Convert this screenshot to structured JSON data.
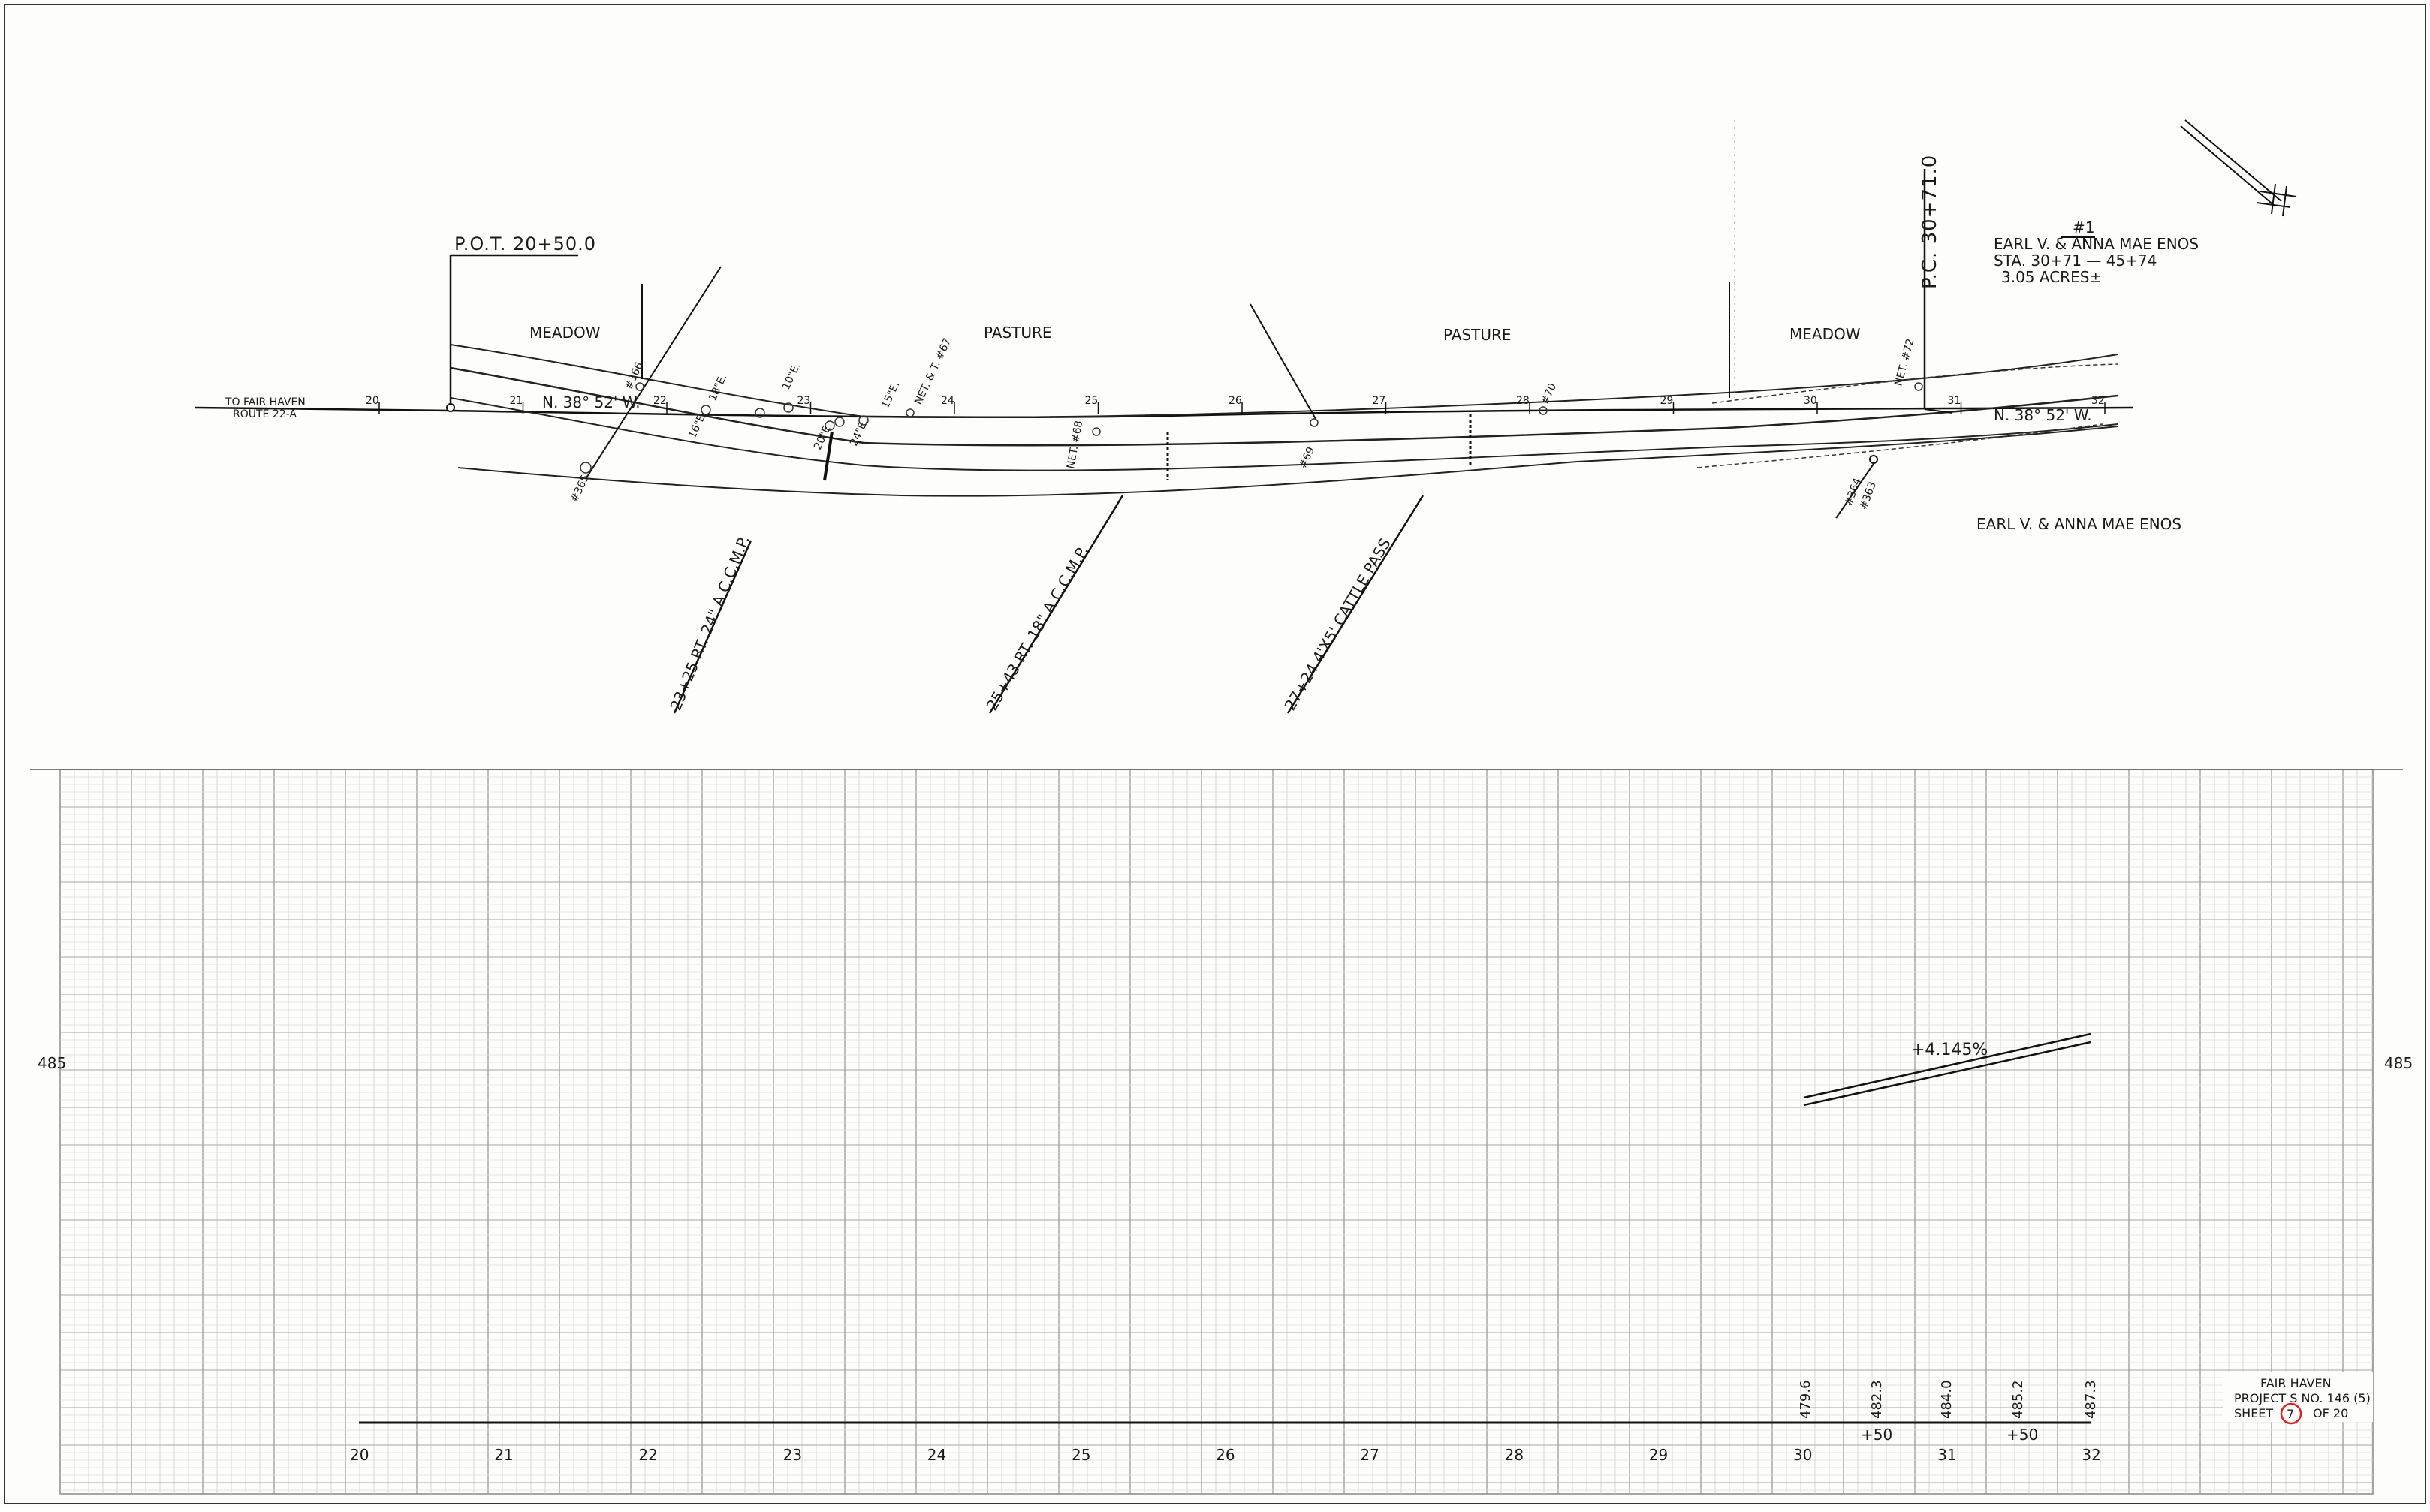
{
  "plan": {
    "pot_label": "P.O.T. 20+50.0",
    "pc_label": "P.C. 30+71.0",
    "to_label_line1": "TO FAIR HAVEN",
    "to_label_line2": "ROUTE 22-A",
    "bearing_left": "N. 38° 52' W.",
    "bearing_right": "N. 38° 52' W.",
    "field_labels": [
      "MEADOW",
      "PASTURE",
      "PASTURE",
      "MEADOW"
    ],
    "owner_block": {
      "parcel_no": "#1",
      "name": "EARL V. & ANNA MAE ENOS",
      "stations": "STA. 30+71 — 45+74",
      "acres": "3.05 ACRES±"
    },
    "owner_below": "EARL V. & ANNA MAE ENOS",
    "station_ticks": [
      "20",
      "21",
      "22",
      "23",
      "24",
      "25",
      "26",
      "27",
      "28",
      "29",
      "30",
      "31",
      "32"
    ],
    "culverts": [
      "23+25 RT. 24\" A.C.C.M.P.",
      "25+43 RT. 18\" A.C.C.M.P.",
      "27+24 4'X5' CATTLE PASS"
    ],
    "small_notes": [
      "#365",
      "#366",
      "16\"E.",
      "18\"E.",
      "10\"E.",
      "20\"E.",
      "24\"E.",
      "15\"E.",
      "NET. & T. #67",
      "NET. #68",
      "#69",
      "#70",
      "NET. #72",
      "#364",
      "#363"
    ]
  },
  "profile": {
    "grade_label": "+4.145%",
    "elevation_label_left": "485",
    "elevation_label_right": "485",
    "station_labels": [
      "20",
      "21",
      "22",
      "23",
      "24",
      "25",
      "26",
      "27",
      "28",
      "29",
      "30",
      "31",
      "32"
    ],
    "plus_labels": [
      "+50",
      "+50"
    ],
    "elevations": [
      "479.6",
      "482.3",
      "484.0",
      "485.2",
      "487.3"
    ]
  },
  "title_block": {
    "town": "FAIR HAVEN",
    "project": "PROJECT S   NO. 146 (5)",
    "sheet_prefix": "SHEET",
    "sheet_number": "7",
    "sheet_suffix": "OF 20"
  }
}
